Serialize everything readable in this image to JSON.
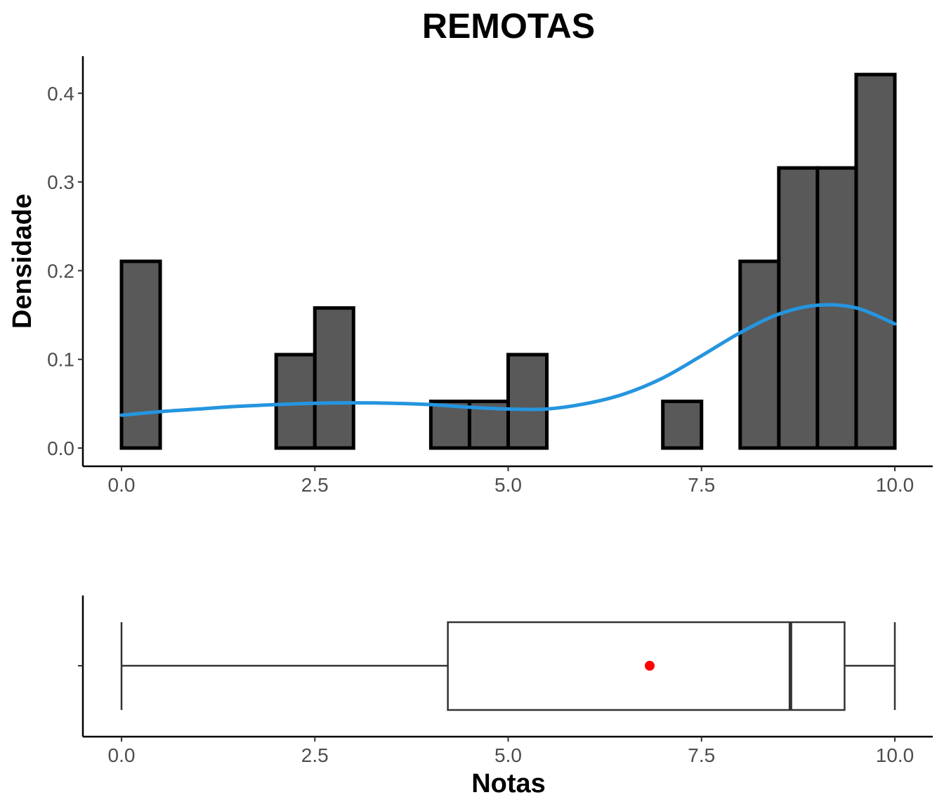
{
  "chart_data": [
    {
      "type": "histogram",
      "title": "REMOTAS",
      "xlabel": "",
      "ylabel": "Densidade",
      "xlim": [
        -0.5,
        10.5
      ],
      "ylim": [
        0,
        0.44
      ],
      "x_ticks": [
        "0.0",
        "2.5",
        "5.0",
        "7.5",
        "10.0"
      ],
      "y_ticks": [
        "0.0",
        "0.1",
        "0.2",
        "0.3",
        "0.4"
      ],
      "bin_width": 0.5,
      "bins": [
        {
          "start": 0.0,
          "end": 0.5,
          "density": 0.2105
        },
        {
          "start": 0.5,
          "end": 1.0,
          "density": 0
        },
        {
          "start": 1.0,
          "end": 1.5,
          "density": 0
        },
        {
          "start": 1.5,
          "end": 2.0,
          "density": 0
        },
        {
          "start": 2.0,
          "end": 2.5,
          "density": 0.1053
        },
        {
          "start": 2.5,
          "end": 3.0,
          "density": 0.1579
        },
        {
          "start": 3.0,
          "end": 3.5,
          "density": 0
        },
        {
          "start": 3.5,
          "end": 4.0,
          "density": 0
        },
        {
          "start": 4.0,
          "end": 4.5,
          "density": 0.0526
        },
        {
          "start": 4.5,
          "end": 5.0,
          "density": 0.0526
        },
        {
          "start": 5.0,
          "end": 5.5,
          "density": 0.1053
        },
        {
          "start": 5.5,
          "end": 6.0,
          "density": 0
        },
        {
          "start": 6.0,
          "end": 6.5,
          "density": 0
        },
        {
          "start": 6.5,
          "end": 7.0,
          "density": 0
        },
        {
          "start": 7.0,
          "end": 7.5,
          "density": 0.0526
        },
        {
          "start": 7.5,
          "end": 8.0,
          "density": 0
        },
        {
          "start": 8.0,
          "end": 8.5,
          "density": 0.2105
        },
        {
          "start": 8.5,
          "end": 9.0,
          "density": 0.3158
        },
        {
          "start": 9.0,
          "end": 9.5,
          "density": 0.3158
        },
        {
          "start": 9.5,
          "end": 10.0,
          "density": 0.4211
        }
      ],
      "bar_color": "#595959",
      "bar_border_color": "#000000",
      "density_curve": {
        "color": "#2595df",
        "x": [
          0.0,
          0.5,
          1.0,
          1.5,
          2.0,
          2.5,
          3.0,
          3.5,
          4.0,
          4.5,
          5.0,
          5.5,
          6.0,
          6.5,
          7.0,
          7.5,
          8.0,
          8.5,
          9.0,
          9.5,
          10.0
        ],
        "y": [
          0.037,
          0.041,
          0.044,
          0.047,
          0.049,
          0.0505,
          0.051,
          0.0505,
          0.049,
          0.046,
          0.044,
          0.044,
          0.05,
          0.061,
          0.079,
          0.104,
          0.13,
          0.151,
          0.161,
          0.158,
          0.14
        ]
      },
      "grid": false
    },
    {
      "type": "boxplot",
      "xlabel": "Notas",
      "ylabel": "",
      "xlim": [
        -0.5,
        10.5
      ],
      "x_ticks": [
        "0.0",
        "2.5",
        "5.0",
        "7.5",
        "10.0"
      ],
      "min": 0.0,
      "q1": 4.22,
      "median": 8.65,
      "q3": 9.35,
      "max": 10.0,
      "mean": 6.83,
      "mean_color": "#ff0000",
      "box_color": "#333333",
      "grid": false
    }
  ]
}
